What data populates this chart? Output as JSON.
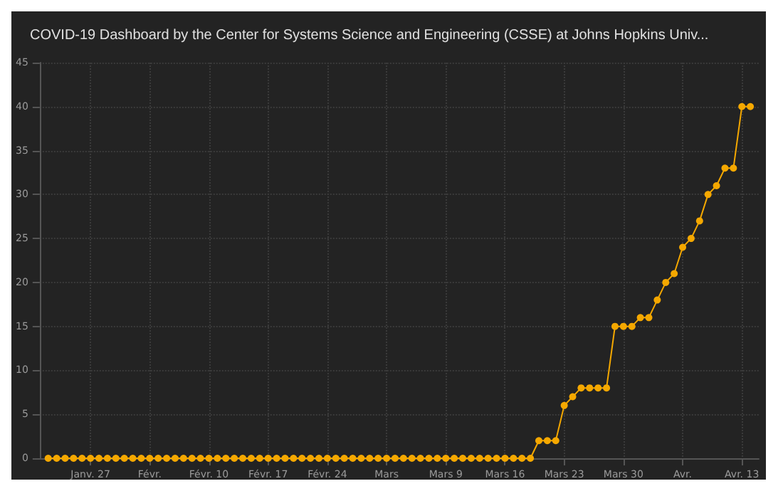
{
  "chart_data": {
    "type": "line",
    "title": "COVID-19 Dashboard by the Center for Systems Science and Engineering (CSSE) at Johns Hopkins Univ...",
    "x": [
      "--01-22",
      "--01-23",
      "--01-24",
      "--01-25",
      "--01-26",
      "--01-27",
      "--01-28",
      "--01-29",
      "--01-30",
      "--01-31",
      "--02-01",
      "--02-02",
      "--02-03",
      "--02-04",
      "--02-05",
      "--02-06",
      "--02-07",
      "--02-08",
      "--02-09",
      "--02-10",
      "--02-11",
      "--02-12",
      "--02-13",
      "--02-14",
      "--02-15",
      "--02-16",
      "--02-17",
      "--02-18",
      "--02-19",
      "--02-20",
      "--02-21",
      "--02-22",
      "--02-23",
      "--02-24",
      "--02-25",
      "--02-26",
      "--02-27",
      "--02-28",
      "--02-29",
      "--03-01",
      "--03-02",
      "--03-03",
      "--03-04",
      "--03-05",
      "--03-06",
      "--03-07",
      "--03-08",
      "--03-09",
      "--03-10",
      "--03-11",
      "--03-12",
      "--03-13",
      "--03-14",
      "--03-15",
      "--03-16",
      "--03-17",
      "--03-18",
      "--03-19",
      "--03-20",
      "--03-21",
      "--03-22",
      "--03-23",
      "--03-24",
      "--03-25",
      "--03-26",
      "--03-27",
      "--03-28",
      "--03-29",
      "--03-30",
      "--03-31",
      "--04-01",
      "--04-02",
      "--04-03",
      "--04-04",
      "--04-05",
      "--04-06",
      "--04-07",
      "--04-08",
      "--04-09",
      "--04-10",
      "--04-11",
      "--04-12",
      "--04-13",
      "--04-14"
    ],
    "series": [
      {
        "color": "#f5a800",
        "values": [
          0,
          0,
          0,
          0,
          0,
          0,
          0,
          0,
          0,
          0,
          0,
          0,
          0,
          0,
          0,
          0,
          0,
          0,
          0,
          0,
          0,
          0,
          0,
          0,
          0,
          0,
          0,
          0,
          0,
          0,
          0,
          0,
          0,
          0,
          0,
          0,
          0,
          0,
          0,
          0,
          0,
          0,
          0,
          0,
          0,
          0,
          0,
          0,
          0,
          0,
          0,
          0,
          0,
          0,
          0,
          0,
          0,
          0,
          2,
          2,
          2,
          6,
          7,
          8,
          8,
          8,
          8,
          15,
          15,
          15,
          16,
          16,
          18,
          20,
          21,
          24,
          25,
          27,
          30,
          31,
          33,
          33,
          40,
          40
        ]
      }
    ],
    "xlim": [
      "--01-21",
      "--04-15"
    ],
    "xticks": [
      {
        "value": "--01-27",
        "label": "Janv. 27"
      },
      {
        "value": "--02-03",
        "label": "Févr."
      },
      {
        "value": "--02-10",
        "label": "Févr. 10"
      },
      {
        "value": "--02-17",
        "label": "Févr. 17"
      },
      {
        "value": "--02-24",
        "label": "Févr. 24"
      },
      {
        "value": "--03-02",
        "label": "Mars"
      },
      {
        "value": "--03-09",
        "label": "Mars 9"
      },
      {
        "value": "--03-16",
        "label": "Mars 16"
      },
      {
        "value": "--03-23",
        "label": "Mars 23"
      },
      {
        "value": "--03-30",
        "label": "Mars 30"
      },
      {
        "value": "--04-06",
        "label": "Avr."
      },
      {
        "value": "--04-13",
        "label": "Avr. 13"
      }
    ],
    "ylim": [
      0,
      45
    ],
    "yticks": [
      0,
      5,
      10,
      15,
      20,
      25,
      30,
      35,
      40,
      45
    ],
    "grid": true,
    "marker": "circle",
    "line_style": "solid"
  }
}
